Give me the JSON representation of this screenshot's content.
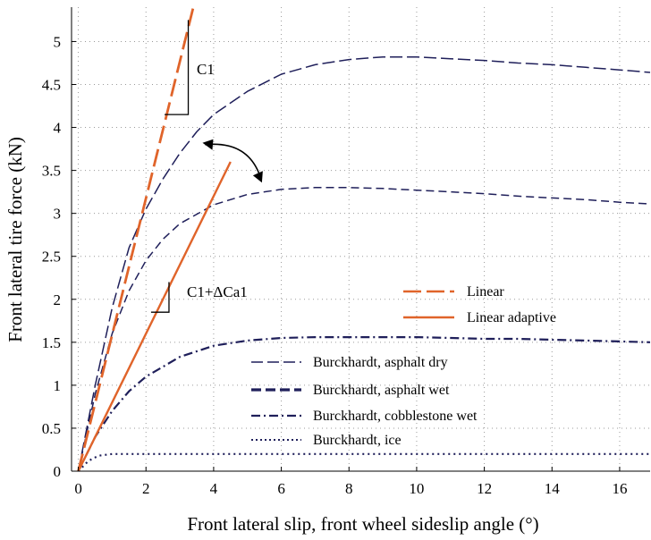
{
  "chart_data": {
    "type": "line",
    "title": "",
    "xlabel": "Front lateral slip, front wheel sideslip angle (°)",
    "ylabel": "Front lateral tire force (kN)",
    "xlim": [
      -0.2,
      16.9
    ],
    "ylim": [
      0,
      5.4
    ],
    "xticks": [
      0,
      2,
      4,
      6,
      8,
      10,
      12,
      14,
      16
    ],
    "yticks": [
      0,
      0.5,
      1,
      1.5,
      2,
      2.5,
      3,
      3.5,
      4,
      4.5,
      5
    ],
    "grid": true,
    "colors": {
      "linear": "#E0642A",
      "linear_adaptive": "#E0642A",
      "burckhardt": "#1F1F5A"
    },
    "series": [
      {
        "name": "Linear",
        "style": "long-dash",
        "x": [
          0,
          3.4
        ],
        "y": [
          0,
          5.4
        ]
      },
      {
        "name": "Linear adaptive",
        "style": "solid",
        "x": [
          0,
          4.5
        ],
        "y": [
          0,
          3.6
        ]
      },
      {
        "name": "Burckhardt, asphalt dry",
        "style": "long-dash-thin",
        "x": [
          0,
          0.5,
          1,
          1.5,
          2,
          2.5,
          3,
          3.5,
          4,
          5,
          6,
          7,
          8,
          9,
          10,
          11,
          12,
          13,
          14,
          15,
          16,
          16.9
        ],
        "y": [
          0,
          1.0,
          1.9,
          2.6,
          3.05,
          3.4,
          3.7,
          3.95,
          4.15,
          4.42,
          4.62,
          4.73,
          4.79,
          4.82,
          4.82,
          4.8,
          4.78,
          4.75,
          4.73,
          4.7,
          4.67,
          4.64
        ]
      },
      {
        "name": "Burckhardt, asphalt wet",
        "style": "short-dash",
        "x": [
          0,
          0.5,
          1,
          1.5,
          2,
          2.5,
          3,
          4,
          5,
          6,
          7,
          8,
          9,
          10,
          11,
          12,
          13,
          14,
          15,
          16,
          16.9
        ],
        "y": [
          0,
          0.9,
          1.6,
          2.1,
          2.45,
          2.7,
          2.88,
          3.1,
          3.22,
          3.28,
          3.3,
          3.3,
          3.29,
          3.27,
          3.25,
          3.23,
          3.2,
          3.18,
          3.16,
          3.13,
          3.11
        ]
      },
      {
        "name": "Burckhardt, cobblestone wet",
        "style": "dash-dot",
        "x": [
          0,
          0.5,
          1,
          1.5,
          2,
          3,
          4,
          5,
          6,
          7,
          8,
          9,
          10,
          11,
          12,
          13,
          14,
          15,
          16,
          16.9
        ],
        "y": [
          0,
          0.4,
          0.7,
          0.93,
          1.1,
          1.33,
          1.46,
          1.52,
          1.55,
          1.56,
          1.56,
          1.56,
          1.56,
          1.55,
          1.54,
          1.54,
          1.53,
          1.52,
          1.51,
          1.5
        ]
      },
      {
        "name": "Burckhardt, ice",
        "style": "dotted",
        "x": [
          0,
          0.3,
          0.6,
          1,
          1.5,
          2,
          4,
          6,
          8,
          10,
          12,
          14,
          16,
          16.9
        ],
        "y": [
          0,
          0.12,
          0.18,
          0.2,
          0.2,
          0.2,
          0.2,
          0.2,
          0.2,
          0.2,
          0.2,
          0.2,
          0.2,
          0.2
        ]
      }
    ],
    "annotations": [
      {
        "text": "C1"
      },
      {
        "text": "C1+ΔCa1"
      }
    ]
  }
}
